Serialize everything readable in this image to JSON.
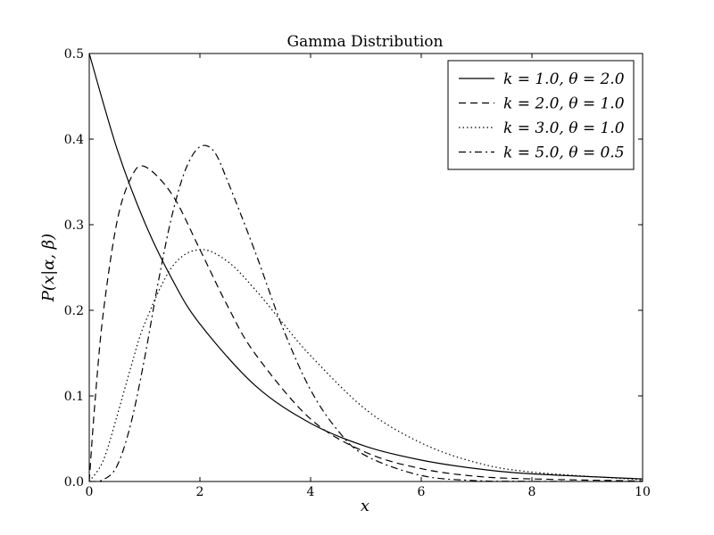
{
  "chart_data": {
    "type": "line",
    "title": "Gamma Distribution",
    "xlabel": "x",
    "ylabel": "P(x|α, β)",
    "xlim": [
      0,
      10
    ],
    "ylim": [
      0,
      0.5
    ],
    "x_ticks": [
      "0",
      "2",
      "4",
      "6",
      "8",
      "10"
    ],
    "y_ticks": [
      "0.0",
      "0.1",
      "0.2",
      "0.3",
      "0.4",
      "0.5"
    ],
    "grid": false,
    "legend_position": "top-right",
    "line_color": "#000000",
    "series": [
      {
        "name": "k = 1.0,  θ = 2.0",
        "style": "solid",
        "x": [
          0,
          0.5,
          1,
          1.5,
          2,
          3,
          4,
          5,
          6,
          7,
          8,
          10
        ],
        "y": [
          0.5,
          0.389,
          0.303,
          0.236,
          0.184,
          0.112,
          0.068,
          0.041,
          0.025,
          0.015,
          0.009,
          0.003
        ]
      },
      {
        "name": "k = 2.0,  θ = 1.0",
        "style": "dashed",
        "x": [
          0,
          0.1,
          0.25,
          0.5,
          0.75,
          1,
          1.5,
          2,
          2.5,
          3,
          4,
          5,
          6,
          7,
          8,
          10
        ],
        "y": [
          0,
          0.09,
          0.195,
          0.303,
          0.354,
          0.368,
          0.335,
          0.271,
          0.205,
          0.149,
          0.073,
          0.034,
          0.015,
          0.006,
          0.003,
          0.0005
        ]
      },
      {
        "name": "k = 3.0,  θ = 1.0",
        "style": "dotted",
        "x": [
          0,
          0.25,
          0.5,
          0.75,
          1,
          1.5,
          2,
          2.5,
          3,
          3.5,
          4,
          5,
          6,
          7,
          8,
          10
        ],
        "y": [
          0,
          0.024,
          0.076,
          0.133,
          0.184,
          0.251,
          0.271,
          0.257,
          0.224,
          0.185,
          0.147,
          0.084,
          0.045,
          0.022,
          0.011,
          0.002
        ]
      },
      {
        "name": "k = 5.0,  θ = 0.5",
        "style": "dashdot",
        "x": [
          0,
          0.25,
          0.5,
          0.75,
          1,
          1.25,
          1.5,
          1.75,
          2,
          2.25,
          2.5,
          3,
          3.5,
          4,
          4.5,
          5,
          6,
          7,
          8,
          10
        ],
        "y": [
          0,
          0.002,
          0.018,
          0.067,
          0.144,
          0.234,
          0.312,
          0.366,
          0.391,
          0.386,
          0.351,
          0.268,
          0.179,
          0.107,
          0.059,
          0.03,
          0.007,
          0.001,
          0.0002,
          0
        ]
      }
    ]
  }
}
